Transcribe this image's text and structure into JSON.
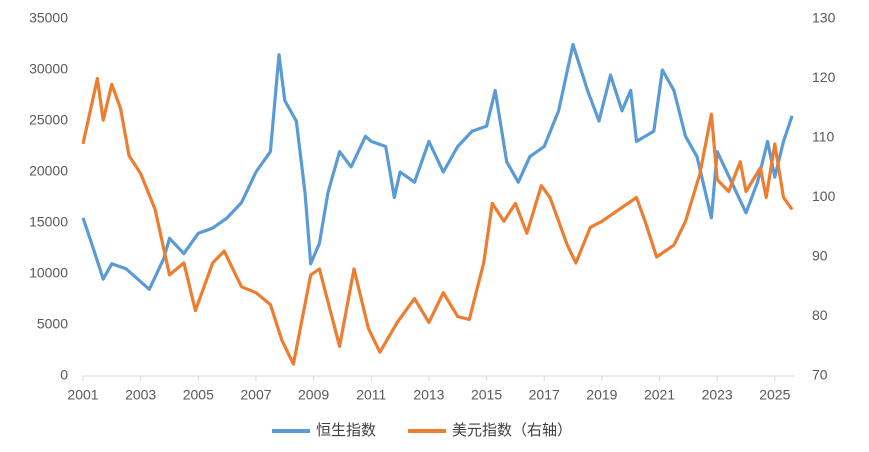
{
  "chart_data": {
    "type": "line",
    "xlim": [
      2001,
      2025.7
    ],
    "xticks": [
      2001,
      2003,
      2005,
      2007,
      2009,
      2011,
      2013,
      2015,
      2017,
      2019,
      2021,
      2023,
      2025
    ],
    "ylim": [
      0,
      35000
    ],
    "yticks": [
      0,
      5000,
      10000,
      15000,
      20000,
      25000,
      30000,
      35000
    ],
    "y2lim": [
      70,
      130
    ],
    "y2ticks": [
      70,
      80,
      90,
      100,
      110,
      120,
      130
    ],
    "grid": false,
    "legend": "bottom",
    "series": [
      {
        "name": "恒生指数",
        "color": "#5b9bd5",
        "x": [
          2001.0,
          2001.3,
          2001.7,
          2002.0,
          2002.5,
          2003.3,
          2003.8,
          2004.0,
          2004.5,
          2005.0,
          2005.5,
          2006.0,
          2006.5,
          2007.0,
          2007.5,
          2007.8,
          2008.0,
          2008.4,
          2008.7,
          2008.9,
          2009.2,
          2009.5,
          2009.9,
          2010.3,
          2010.8,
          2011.0,
          2011.5,
          2011.8,
          2012.0,
          2012.5,
          2013.0,
          2013.5,
          2014.0,
          2014.5,
          2015.0,
          2015.3,
          2015.7,
          2016.1,
          2016.5,
          2017.0,
          2017.5,
          2018.0,
          2018.5,
          2018.9,
          2019.3,
          2019.7,
          2020.0,
          2020.2,
          2020.8,
          2021.1,
          2021.5,
          2021.9,
          2022.3,
          2022.8,
          2023.0,
          2023.5,
          2024.0,
          2024.4,
          2024.75,
          2025.0,
          2025.3,
          2025.6
        ],
        "values": [
          15500,
          13000,
          9500,
          11000,
          10500,
          8500,
          11500,
          13500,
          12000,
          14000,
          14500,
          15500,
          17000,
          20000,
          22000,
          31500,
          27000,
          25000,
          18000,
          11000,
          13000,
          18000,
          22000,
          20500,
          23500,
          23000,
          22500,
          17500,
          20000,
          19000,
          23000,
          20000,
          22500,
          24000,
          24500,
          28000,
          21000,
          19000,
          21500,
          22500,
          26000,
          32500,
          28000,
          25000,
          29500,
          26000,
          28000,
          23000,
          24000,
          30000,
          28000,
          23500,
          21500,
          15500,
          22000,
          19000,
          16000,
          19000,
          23000,
          19500,
          23000,
          25500
        ]
      },
      {
        "name": "美元指数（右轴）",
        "color": "#ed7d31",
        "axis": "y2",
        "x": [
          2001.0,
          2001.5,
          2001.7,
          2002.0,
          2002.3,
          2002.6,
          2003.0,
          2003.5,
          2004.0,
          2004.5,
          2004.9,
          2005.5,
          2005.9,
          2006.5,
          2007.0,
          2007.5,
          2007.9,
          2008.3,
          2008.9,
          2009.2,
          2009.9,
          2010.4,
          2010.9,
          2011.3,
          2011.9,
          2012.5,
          2013.0,
          2013.5,
          2014.0,
          2014.4,
          2014.9,
          2015.2,
          2015.6,
          2016.0,
          2016.4,
          2016.9,
          2017.2,
          2017.8,
          2018.1,
          2018.6,
          2019.0,
          2019.6,
          2020.2,
          2020.5,
          2020.9,
          2021.5,
          2021.9,
          2022.4,
          2022.8,
          2023.0,
          2023.4,
          2023.8,
          2024.0,
          2024.5,
          2024.7,
          2025.0,
          2025.3,
          2025.6
        ],
        "values": [
          109,
          120,
          113,
          119,
          115,
          107,
          104,
          98,
          87,
          89,
          81,
          89,
          91,
          85,
          84,
          82,
          76,
          72,
          87,
          88,
          75,
          88,
          78,
          74,
          79,
          83,
          79,
          84,
          80,
          79.5,
          89,
          99,
          96,
          99,
          94,
          102,
          100,
          92,
          89,
          95,
          96,
          98,
          100,
          96,
          90,
          92,
          96,
          104,
          114,
          103,
          101,
          106,
          101,
          105,
          100,
          109,
          100,
          98
        ]
      }
    ]
  }
}
